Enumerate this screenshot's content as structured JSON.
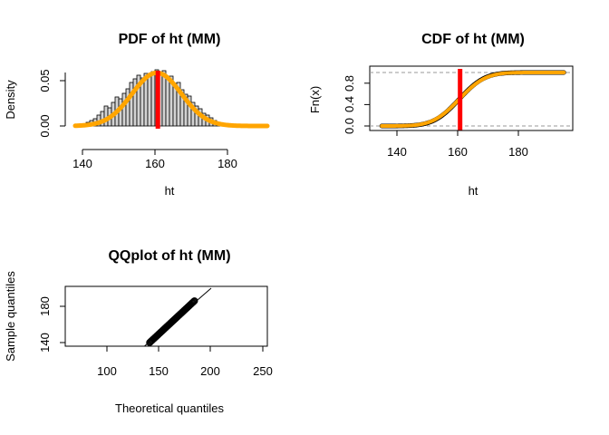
{
  "chart_data": [
    {
      "type": "bar",
      "title": "PDF of ht (MM)",
      "xlabel": "ht",
      "ylabel": "Density",
      "xlim": [
        136,
        192
      ],
      "ylim": [
        0,
        0.06
      ],
      "xticks": [
        "140",
        "160",
        "180"
      ],
      "yticks": [
        "0.00",
        "0.05"
      ],
      "histogram": {
        "bin_width": 1,
        "x_start": 140,
        "values": [
          0.002,
          0.004,
          0.006,
          0.008,
          0.012,
          0.016,
          0.022,
          0.02,
          0.026,
          0.032,
          0.03,
          0.036,
          0.041,
          0.048,
          0.052,
          0.056,
          0.053,
          0.058,
          0.056,
          0.06,
          0.062,
          0.058,
          0.061,
          0.052,
          0.055,
          0.047,
          0.048,
          0.04,
          0.035,
          0.033,
          0.026,
          0.022,
          0.019,
          0.014,
          0.012,
          0.009,
          0.006,
          0.004,
          0.003,
          0.002
        ]
      },
      "fitted_curve": {
        "name": "normal",
        "mean": 160.5,
        "sd": 6.8,
        "color": "#ffa500"
      },
      "vline": {
        "x": 160.8,
        "color": "#ff0000"
      }
    },
    {
      "type": "line",
      "title": "CDF of ht (MM)",
      "xlabel": "ht",
      "ylabel": "Fn(x)",
      "xlim": [
        133,
        197
      ],
      "ylim": [
        0,
        1
      ],
      "xticks": [
        "140",
        "160",
        "180"
      ],
      "yticks": [
        "0.0",
        "0.4",
        "0.8"
      ],
      "series": [
        {
          "kind": "empirical-cdf",
          "color": "#000000",
          "mean": 160.5,
          "sd": 6.6
        },
        {
          "kind": "fitted-cdf",
          "color": "#ffa500",
          "mean": 160.5,
          "sd": 6.8
        }
      ],
      "hlines": [
        0,
        1
      ],
      "vline": {
        "x": 160.8,
        "color": "#ff0000"
      },
      "x_range_shown": [
        135,
        195
      ]
    },
    {
      "type": "scatter",
      "title": "QQplot of ht (MM)",
      "xlabel": "Theoretical quantiles",
      "ylabel": "Sample quantiles",
      "xlim": [
        65,
        255
      ],
      "ylim": [
        135,
        195
      ],
      "xticks": [
        "100",
        "150",
        "200",
        "250"
      ],
      "yticks": [
        "140",
        "180"
      ],
      "points": {
        "x_min": 141,
        "x_max": 184,
        "y_min": 140,
        "y_max": 186
      },
      "reference_line": {
        "slope": 1,
        "intercept": 0
      }
    }
  ]
}
